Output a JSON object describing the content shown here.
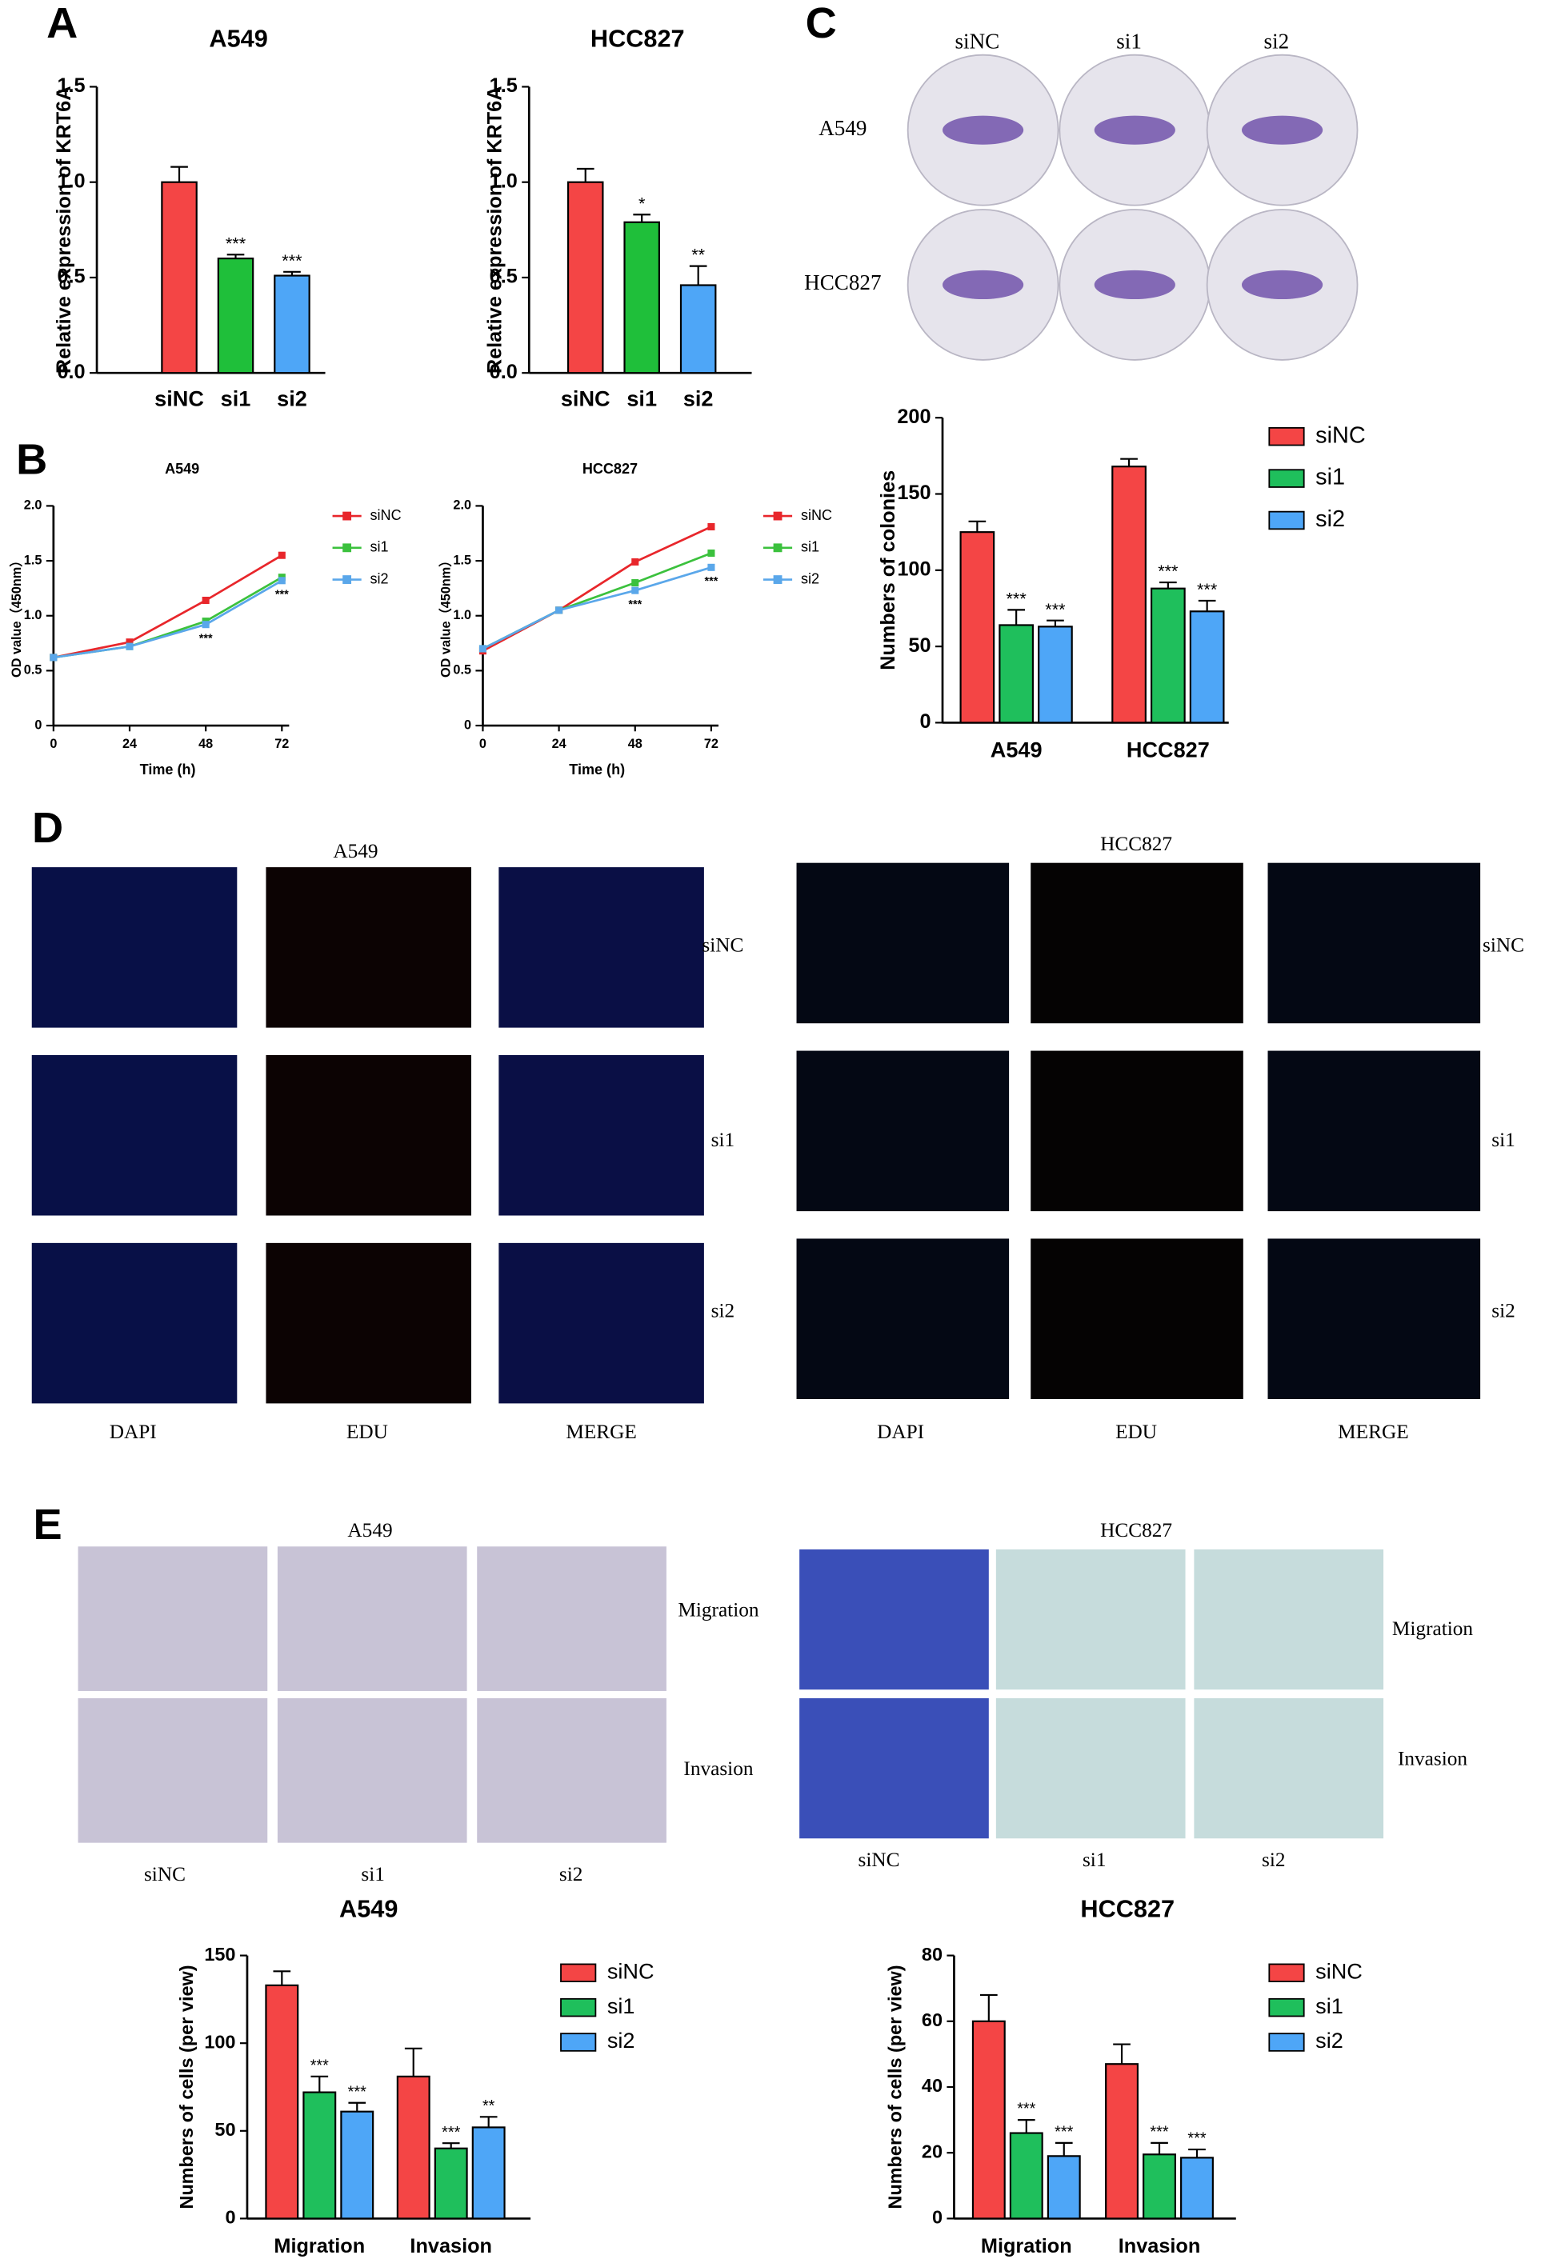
{
  "figure": {
    "panels": [
      "A",
      "B",
      "C",
      "D",
      "E"
    ],
    "colony": {
      "columns": [
        "siNC",
        "si1",
        "si2"
      ],
      "rows": [
        "A549",
        "HCC827"
      ]
    },
    "edu": [
      {
        "title": "A549",
        "rows": [
          "siNC",
          "si1",
          "si2"
        ],
        "columns": [
          "DAPI",
          "EDU",
          "MERGE"
        ]
      },
      {
        "title": "HCC827",
        "rows": [
          "siNC",
          "si1",
          "si2"
        ],
        "columns": [
          "DAPI",
          "EDU",
          "MERGE"
        ]
      }
    ],
    "transwell": [
      {
        "title": "A549",
        "rows": [
          "Migration",
          "Invasion"
        ],
        "columns": [
          "siNC",
          "si1",
          "si2"
        ]
      },
      {
        "title": "HCC827",
        "rows": [
          "Migration",
          "Invasion"
        ],
        "columns": [
          "siNC",
          "si1",
          "si2"
        ]
      }
    ]
  },
  "chart_data": [
    {
      "type": "bar",
      "title": "A549",
      "y_label": "Relative expression of KRT6A",
      "categories": [
        "siNC",
        "si1",
        "si2"
      ],
      "values": [
        1.0,
        0.6,
        0.51
      ],
      "errors": [
        0.08,
        0.02,
        0.02
      ],
      "colors": [
        "#f44545",
        "#1fbf3a",
        "#4ea6f7"
      ],
      "significance": [
        null,
        "***",
        "***"
      ],
      "ylim": [
        0,
        1.5
      ],
      "yticks": [
        {
          "value": 0,
          "label": "0.0"
        },
        0.5,
        {
          "value": 1,
          "label": "1.0"
        },
        1.5
      ]
    },
    {
      "type": "bar",
      "title": "HCC827",
      "y_label": "Relative expression of KRT6A",
      "categories": [
        "siNC",
        "si1",
        "si2"
      ],
      "values": [
        1.0,
        0.79,
        0.46
      ],
      "errors": [
        0.07,
        0.04,
        0.1
      ],
      "colors": [
        "#f44545",
        "#1fbf3a",
        "#4ea6f7"
      ],
      "significance": [
        null,
        "*",
        "**"
      ],
      "ylim": [
        0,
        1.5
      ],
      "yticks": [
        {
          "value": 0,
          "label": "0.0"
        },
        0.5,
        {
          "value": 1,
          "label": "1.0"
        },
        1.5
      ]
    },
    {
      "type": "line",
      "title": "A549",
      "x_label": "Time (h)",
      "y_label": "OD value（450nm）",
      "x": [
        0,
        24,
        48,
        72
      ],
      "xlim": [
        0,
        72
      ],
      "xticks": [
        0,
        24,
        48,
        72
      ],
      "ylim": [
        0,
        2
      ],
      "yticks": [
        0,
        0.5,
        {
          "value": 1,
          "label": "1.0"
        },
        1.5,
        {
          "value": 2,
          "label": "2.0"
        }
      ],
      "significance": [
        null,
        null,
        "***",
        "***"
      ],
      "series": [
        {
          "name": "siNC",
          "color": "#e8262b",
          "values": [
            0.62,
            0.76,
            1.14,
            1.55
          ]
        },
        {
          "name": "si1",
          "color": "#3bc13d",
          "values": [
            0.62,
            0.72,
            0.95,
            1.35
          ]
        },
        {
          "name": "si2",
          "color": "#5aa7ea",
          "values": [
            0.62,
            0.72,
            0.92,
            1.32
          ]
        }
      ]
    },
    {
      "type": "line",
      "title": "HCC827",
      "x_label": "Time (h)",
      "y_label": "OD value（450nm）",
      "x": [
        0,
        24,
        48,
        72
      ],
      "xlim": [
        0,
        72
      ],
      "xticks": [
        0,
        24,
        48,
        72
      ],
      "ylim": [
        0,
        2
      ],
      "yticks": [
        0,
        0.5,
        {
          "value": 1,
          "label": "1.0"
        },
        1.5,
        {
          "value": 2,
          "label": "2.0"
        }
      ],
      "significance": [
        null,
        null,
        "***",
        "***"
      ],
      "series": [
        {
          "name": "siNC",
          "color": "#e8262b",
          "values": [
            0.68,
            1.05,
            1.49,
            1.81
          ]
        },
        {
          "name": "si1",
          "color": "#3bc13d",
          "values": [
            0.7,
            1.05,
            1.3,
            1.57
          ]
        },
        {
          "name": "si2",
          "color": "#5aa7ea",
          "values": [
            0.7,
            1.05,
            1.23,
            1.44
          ]
        }
      ]
    },
    {
      "type": "bar",
      "y_label": "Numbers of colonies",
      "categories": [
        "A549",
        "HCC827"
      ],
      "ylim": [
        0,
        200
      ],
      "yticks": [
        0,
        50,
        100,
        150,
        200
      ],
      "series": [
        {
          "name": "siNC",
          "color": "#f44545",
          "values": [
            125,
            168
          ],
          "errors": [
            7,
            5
          ],
          "significance": [
            null,
            null
          ]
        },
        {
          "name": "si1",
          "color": "#1fbf5c",
          "values": [
            64,
            88
          ],
          "errors": [
            10,
            4
          ],
          "significance": [
            "***",
            "***"
          ]
        },
        {
          "name": "si2",
          "color": "#4ea6f7",
          "values": [
            63,
            73
          ],
          "errors": [
            4,
            7
          ],
          "significance": [
            "***",
            "***"
          ]
        }
      ]
    },
    {
      "type": "bar",
      "title": "A549",
      "y_label": "Numbers of cells (per view)",
      "categories": [
        "Migration",
        "Invasion"
      ],
      "ylim": [
        0,
        150
      ],
      "yticks": [
        0,
        50,
        100,
        150
      ],
      "series": [
        {
          "name": "siNC",
          "color": "#f44545",
          "values": [
            133,
            81
          ],
          "errors": [
            8,
            16
          ],
          "significance": [
            null,
            null
          ]
        },
        {
          "name": "si1",
          "color": "#1fbf5c",
          "values": [
            72,
            40
          ],
          "errors": [
            9,
            3
          ],
          "significance": [
            "***",
            "***"
          ]
        },
        {
          "name": "si2",
          "color": "#4ea6f7",
          "values": [
            61,
            52
          ],
          "errors": [
            5,
            6
          ],
          "significance": [
            "***",
            "**"
          ]
        }
      ]
    },
    {
      "type": "bar",
      "title": "HCC827",
      "y_label": "Numbers of cells (per view)",
      "categories": [
        "Migration",
        "Invasion"
      ],
      "ylim": [
        0,
        80
      ],
      "yticks": [
        0,
        20,
        40,
        60,
        80
      ],
      "series": [
        {
          "name": "siNC",
          "color": "#f44545",
          "values": [
            60,
            47
          ],
          "errors": [
            8,
            6
          ],
          "significance": [
            null,
            null
          ]
        },
        {
          "name": "si1",
          "color": "#1fbf5c",
          "values": [
            26,
            19.5
          ],
          "errors": [
            4,
            3.5
          ],
          "significance": [
            "***",
            "***"
          ]
        },
        {
          "name": "si2",
          "color": "#4ea6f7",
          "values": [
            19,
            18.5
          ],
          "errors": [
            4,
            2.5
          ],
          "significance": [
            "***",
            "***"
          ]
        }
      ]
    }
  ]
}
